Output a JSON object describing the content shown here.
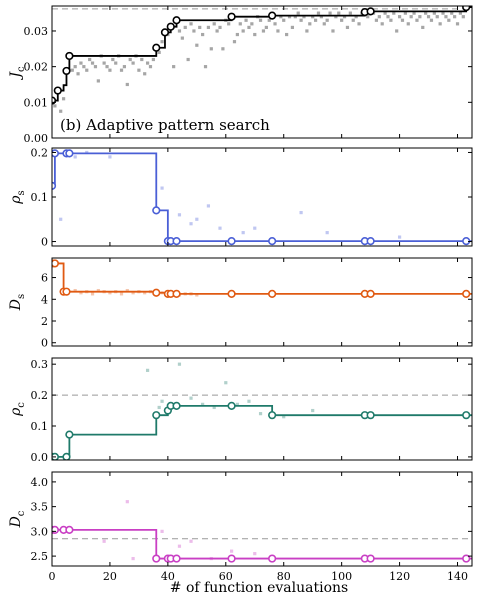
{
  "figure": {
    "xlabel": "# of function evaluations",
    "annotation": "(b) Adaptive pattern search",
    "x_ticks": [
      0,
      20,
      40,
      60,
      80,
      100,
      120,
      140
    ],
    "xlim": [
      0,
      145
    ]
  },
  "chart_data": [
    {
      "type": "scatter",
      "ylabel": "J",
      "ylabel_sub": "c",
      "ylim": [
        0.0,
        0.037
      ],
      "yticks": [
        "0.00",
        "0.01",
        "0.02",
        "0.03"
      ],
      "ytick_values": [
        0.0,
        0.01,
        0.02,
        0.03
      ],
      "color": "#000000",
      "dashed_line": 0.0362,
      "step_x": [
        0,
        2,
        4,
        5,
        6,
        36,
        39,
        41,
        43,
        62,
        76,
        108,
        110,
        143
      ],
      "step_y": [
        0.0105,
        0.0133,
        0.0148,
        0.0188,
        0.023,
        0.0253,
        0.0296,
        0.0312,
        0.033,
        0.034,
        0.0343,
        0.0353,
        0.0355,
        0.0367
      ],
      "markers": [
        [
          0,
          0.0105
        ],
        [
          2,
          0.0133
        ],
        [
          5,
          0.0188
        ],
        [
          6,
          0.023
        ],
        [
          36,
          0.0253
        ],
        [
          39,
          0.0296
        ],
        [
          41,
          0.0312
        ],
        [
          43,
          0.033
        ],
        [
          62,
          0.034
        ],
        [
          76,
          0.0343
        ],
        [
          108,
          0.0353
        ],
        [
          110,
          0.0355
        ],
        [
          143,
          0.0367
        ]
      ],
      "samples": [
        [
          1,
          0.009
        ],
        [
          3,
          0.0075
        ],
        [
          4,
          0.011
        ],
        [
          7,
          0.019
        ],
        [
          8,
          0.02
        ],
        [
          9,
          0.018
        ],
        [
          10,
          0.021
        ],
        [
          11,
          0.02
        ],
        [
          12,
          0.019
        ],
        [
          13,
          0.022
        ],
        [
          14,
          0.021
        ],
        [
          15,
          0.02
        ],
        [
          16,
          0.016
        ],
        [
          17,
          0.023
        ],
        [
          18,
          0.021
        ],
        [
          19,
          0.02
        ],
        [
          20,
          0.019
        ],
        [
          21,
          0.022
        ],
        [
          22,
          0.021
        ],
        [
          23,
          0.023
        ],
        [
          24,
          0.019
        ],
        [
          25,
          0.02
        ],
        [
          26,
          0.015
        ],
        [
          27,
          0.022
        ],
        [
          28,
          0.021
        ],
        [
          29,
          0.023
        ],
        [
          30,
          0.019
        ],
        [
          31,
          0.022
        ],
        [
          32,
          0.018
        ],
        [
          33,
          0.021
        ],
        [
          34,
          0.02
        ],
        [
          35,
          0.022
        ],
        [
          37,
          0.024
        ],
        [
          38,
          0.027
        ],
        [
          40,
          0.029
        ],
        [
          42,
          0.02
        ],
        [
          44,
          0.03
        ],
        [
          45,
          0.028
        ],
        [
          46,
          0.031
        ],
        [
          47,
          0.022
        ],
        [
          48,
          0.032
        ],
        [
          49,
          0.03
        ],
        [
          50,
          0.026
        ],
        [
          51,
          0.031
        ],
        [
          52,
          0.029
        ],
        [
          53,
          0.02
        ],
        [
          54,
          0.031
        ],
        [
          55,
          0.025
        ],
        [
          56,
          0.032
        ],
        [
          57,
          0.03
        ],
        [
          58,
          0.031
        ],
        [
          59,
          0.025
        ],
        [
          60,
          0.033
        ],
        [
          61,
          0.032
        ],
        [
          63,
          0.027
        ],
        [
          64,
          0.029
        ],
        [
          65,
          0.032
        ],
        [
          66,
          0.03
        ],
        [
          67,
          0.033
        ],
        [
          68,
          0.031
        ],
        [
          69,
          0.032
        ],
        [
          70,
          0.029
        ],
        [
          71,
          0.034
        ],
        [
          72,
          0.033
        ],
        [
          73,
          0.03
        ],
        [
          74,
          0.031
        ],
        [
          75,
          0.033
        ],
        [
          77,
          0.032
        ],
        [
          78,
          0.03
        ],
        [
          79,
          0.034
        ],
        [
          80,
          0.033
        ],
        [
          81,
          0.029
        ],
        [
          82,
          0.034
        ],
        [
          83,
          0.031
        ],
        [
          84,
          0.034
        ],
        [
          85,
          0.035
        ],
        [
          86,
          0.033
        ],
        [
          87,
          0.034
        ],
        [
          88,
          0.03
        ],
        [
          89,
          0.032
        ],
        [
          90,
          0.034
        ],
        [
          91,
          0.033
        ],
        [
          92,
          0.035
        ],
        [
          93,
          0.034
        ],
        [
          94,
          0.032
        ],
        [
          95,
          0.033
        ],
        [
          96,
          0.035
        ],
        [
          97,
          0.03
        ],
        [
          98,
          0.034
        ],
        [
          99,
          0.035
        ],
        [
          100,
          0.033
        ],
        [
          101,
          0.034
        ],
        [
          102,
          0.031
        ],
        [
          103,
          0.035
        ],
        [
          104,
          0.033
        ],
        [
          105,
          0.034
        ],
        [
          106,
          0.032
        ],
        [
          107,
          0.035
        ],
        [
          109,
          0.034
        ],
        [
          111,
          0.035
        ],
        [
          112,
          0.033
        ],
        [
          113,
          0.034
        ],
        [
          114,
          0.032
        ],
        [
          115,
          0.035
        ],
        [
          116,
          0.034
        ],
        [
          117,
          0.033
        ],
        [
          118,
          0.035
        ],
        [
          119,
          0.03
        ],
        [
          120,
          0.034
        ],
        [
          121,
          0.033
        ],
        [
          122,
          0.035
        ],
        [
          123,
          0.032
        ],
        [
          124,
          0.034
        ],
        [
          125,
          0.035
        ],
        [
          126,
          0.033
        ],
        [
          127,
          0.034
        ],
        [
          128,
          0.031
        ],
        [
          129,
          0.035
        ],
        [
          130,
          0.034
        ],
        [
          131,
          0.033
        ],
        [
          132,
          0.035
        ],
        [
          133,
          0.034
        ],
        [
          134,
          0.032
        ],
        [
          135,
          0.035
        ],
        [
          136,
          0.034
        ],
        [
          137,
          0.033
        ],
        [
          138,
          0.035
        ],
        [
          139,
          0.034
        ],
        [
          140,
          0.032
        ],
        [
          141,
          0.035
        ],
        [
          142,
          0.034
        ]
      ]
    },
    {
      "type": "scatter",
      "ylabel": "ρ",
      "ylabel_sub": "s",
      "ylim": [
        -0.01,
        0.21
      ],
      "yticks": [
        "0",
        "0.1",
        "0.2"
      ],
      "ytick_values": [
        0.0,
        0.1,
        0.2
      ],
      "color": "#4a5fd6",
      "dashed_line": null,
      "step_x": [
        0,
        1,
        5,
        6,
        36,
        40,
        41,
        143
      ],
      "step_y": [
        0.125,
        0.198,
        0.198,
        0.198,
        0.07,
        0.001,
        0.001,
        0.001
      ],
      "markers": [
        [
          0,
          0.125
        ],
        [
          1,
          0.198
        ],
        [
          5,
          0.198
        ],
        [
          6,
          0.198
        ],
        [
          36,
          0.07
        ],
        [
          40,
          0.001
        ],
        [
          41,
          0.001
        ],
        [
          43,
          0.001
        ],
        [
          62,
          0.001
        ],
        [
          76,
          0.001
        ],
        [
          108,
          0.001
        ],
        [
          110,
          0.001
        ],
        [
          143,
          0.001
        ]
      ],
      "samples": [
        [
          3,
          0.05
        ],
        [
          8,
          0.19
        ],
        [
          12,
          0.2
        ],
        [
          20,
          0.19
        ],
        [
          38,
          0.12
        ],
        [
          44,
          0.06
        ],
        [
          48,
          0.04
        ],
        [
          50,
          0.05
        ],
        [
          54,
          0.08
        ],
        [
          58,
          0.03
        ],
        [
          66,
          0.02
        ],
        [
          70,
          0.03
        ],
        [
          86,
          0.065
        ],
        [
          95,
          0.02
        ],
        [
          120,
          0.01
        ]
      ]
    },
    {
      "type": "scatter",
      "ylabel": "D",
      "ylabel_sub": "s",
      "ylim": [
        -0.3,
        7.8
      ],
      "yticks": [
        "0",
        "2",
        "4",
        "6"
      ],
      "ytick_values": [
        0,
        2,
        4,
        6
      ],
      "color": "#e05a12",
      "dashed_line": null,
      "step_x": [
        0,
        2,
        4,
        36,
        40,
        41,
        43,
        143
      ],
      "step_y": [
        7.3,
        7.3,
        4.7,
        4.6,
        4.5,
        4.5,
        4.5,
        4.5
      ],
      "markers": [
        [
          0,
          7.3
        ],
        [
          1,
          7.3
        ],
        [
          4,
          4.7
        ],
        [
          5,
          4.7
        ],
        [
          36,
          4.6
        ],
        [
          40,
          4.5
        ],
        [
          41,
          4.5
        ],
        [
          43,
          4.5
        ],
        [
          62,
          4.5
        ],
        [
          76,
          4.5
        ],
        [
          108,
          4.5
        ],
        [
          110,
          4.5
        ],
        [
          143,
          4.5
        ]
      ],
      "samples": [
        [
          8,
          4.8
        ],
        [
          10,
          4.6
        ],
        [
          12,
          4.7
        ],
        [
          14,
          4.5
        ],
        [
          16,
          4.8
        ],
        [
          18,
          4.7
        ],
        [
          20,
          4.6
        ],
        [
          22,
          4.7
        ],
        [
          24,
          4.5
        ],
        [
          26,
          4.8
        ],
        [
          28,
          4.6
        ],
        [
          30,
          4.7
        ],
        [
          32,
          4.6
        ],
        [
          34,
          4.7
        ],
        [
          38,
          4.6
        ],
        [
          44,
          4.4
        ],
        [
          46,
          4.5
        ],
        [
          48,
          4.5
        ],
        [
          50,
          4.4
        ]
      ]
    },
    {
      "type": "scatter",
      "ylabel": "ρ",
      "ylabel_sub": "c",
      "ylim": [
        -0.01,
        0.32
      ],
      "yticks": [
        "0.0",
        "0.1",
        "0.2",
        "0.3"
      ],
      "ytick_values": [
        0.0,
        0.1,
        0.2,
        0.3
      ],
      "color": "#1f7a6a",
      "dashed_line": 0.2,
      "step_x": [
        0,
        6,
        36,
        40,
        41,
        62,
        76,
        108,
        110,
        143
      ],
      "step_y": [
        0.0,
        0.072,
        0.135,
        0.15,
        0.165,
        0.165,
        0.135,
        0.135,
        0.135,
        0.135
      ],
      "markers": [
        [
          0,
          0.0
        ],
        [
          1,
          0.0
        ],
        [
          5,
          0.0
        ],
        [
          6,
          0.072
        ],
        [
          36,
          0.135
        ],
        [
          40,
          0.15
        ],
        [
          41,
          0.165
        ],
        [
          43,
          0.165
        ],
        [
          62,
          0.165
        ],
        [
          76,
          0.135
        ],
        [
          108,
          0.135
        ],
        [
          110,
          0.135
        ],
        [
          143,
          0.135
        ]
      ],
      "samples": [
        [
          33,
          0.28
        ],
        [
          37,
          0.16
        ],
        [
          38,
          0.18
        ],
        [
          44,
          0.3
        ],
        [
          48,
          0.19
        ],
        [
          52,
          0.17
        ],
        [
          56,
          0.16
        ],
        [
          60,
          0.24
        ],
        [
          64,
          0.17
        ],
        [
          68,
          0.18
        ],
        [
          72,
          0.14
        ],
        [
          80,
          0.13
        ],
        [
          90,
          0.15
        ]
      ]
    },
    {
      "type": "scatter",
      "ylabel": "D",
      "ylabel_sub": "c",
      "ylim": [
        2.3,
        4.2
      ],
      "yticks": [
        "2.5",
        "3.0",
        "3.5",
        "4.0"
      ],
      "ytick_values": [
        2.5,
        3.0,
        3.5,
        4.0
      ],
      "color": "#c93fc4",
      "dashed_line": 2.85,
      "step_x": [
        0,
        36,
        40,
        41,
        43,
        143
      ],
      "step_y": [
        3.03,
        2.45,
        2.45,
        2.45,
        2.45,
        2.45
      ],
      "markers": [
        [
          0,
          3.03
        ],
        [
          1,
          3.03
        ],
        [
          4,
          3.03
        ],
        [
          6,
          3.03
        ],
        [
          36,
          2.45
        ],
        [
          40,
          2.45
        ],
        [
          41,
          2.45
        ],
        [
          43,
          2.45
        ],
        [
          62,
          2.45
        ],
        [
          76,
          2.45
        ],
        [
          108,
          2.45
        ],
        [
          110,
          2.45
        ],
        [
          143,
          2.45
        ]
      ],
      "samples": [
        [
          18,
          2.8
        ],
        [
          26,
          3.6
        ],
        [
          28,
          2.45
        ],
        [
          38,
          3.0
        ],
        [
          44,
          2.7
        ],
        [
          48,
          2.8
        ],
        [
          55,
          2.45
        ],
        [
          62,
          2.6
        ],
        [
          70,
          2.55
        ]
      ]
    }
  ]
}
